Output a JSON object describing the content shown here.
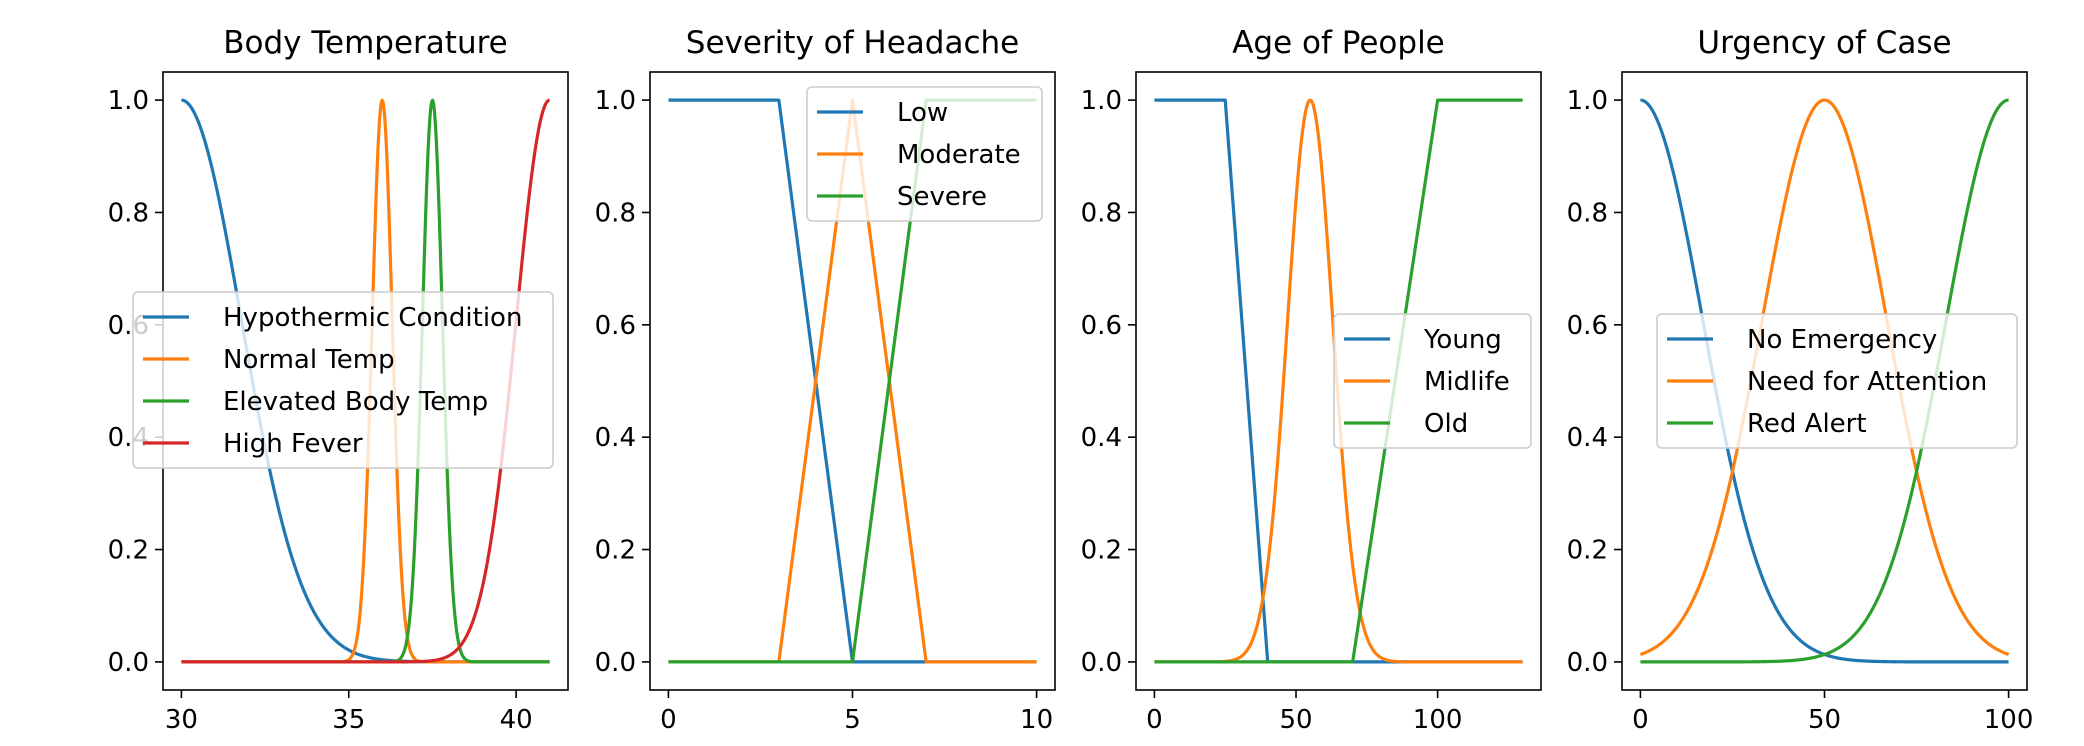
{
  "colors": {
    "c0": "#1f77b4",
    "c1": "#ff7f0e",
    "c2": "#2ca02c",
    "c3": "#d62728"
  },
  "chart_data": [
    {
      "type": "line",
      "title": "Body Temperature",
      "xlim": [
        29.45,
        41.55
      ],
      "ylim": [
        -0.05,
        1.05
      ],
      "xticks": [
        30,
        35,
        40
      ],
      "yticks": [
        "0.0",
        "0.2",
        "0.4",
        "0.6",
        "0.8",
        "1.0"
      ],
      "legend": {
        "position": "center-left"
      },
      "series": [
        {
          "name": "Hypothermic Condition",
          "color": "#1f77b4",
          "kind": "gauss",
          "mean": 30,
          "sigma": 1.8,
          "xmin": 30,
          "xmax": 41
        },
        {
          "name": "Normal Temp",
          "color": "#ff7f0e",
          "kind": "gauss",
          "mean": 36,
          "sigma": 0.3,
          "xmin": 30,
          "xmax": 41
        },
        {
          "name": "Elevated Body Temp",
          "color": "#2ca02c",
          "kind": "gauss",
          "mean": 37.5,
          "sigma": 0.3,
          "xmin": 30,
          "xmax": 41
        },
        {
          "name": "High Fever",
          "color": "#d62728",
          "kind": "gauss",
          "mean": 41,
          "sigma": 1.0,
          "xmin": 30,
          "xmax": 41
        }
      ]
    },
    {
      "type": "line",
      "title": "Severity of Headache",
      "xlim": [
        -0.5,
        10.5
      ],
      "ylim": [
        -0.05,
        1.05
      ],
      "xticks": [
        0,
        5,
        10
      ],
      "yticks": [
        "0.0",
        "0.2",
        "0.4",
        "0.6",
        "0.8",
        "1.0"
      ],
      "legend": {
        "position": "top-right"
      },
      "series": [
        {
          "name": "Low",
          "color": "#1f77b4",
          "kind": "points",
          "points": [
            [
              0,
              1
            ],
            [
              3,
              1
            ],
            [
              5,
              0
            ],
            [
              10,
              0
            ]
          ]
        },
        {
          "name": "Moderate",
          "color": "#ff7f0e",
          "kind": "points",
          "points": [
            [
              0,
              0
            ],
            [
              3,
              0
            ],
            [
              5,
              1
            ],
            [
              7,
              0
            ],
            [
              10,
              0
            ]
          ]
        },
        {
          "name": "Severe",
          "color": "#2ca02c",
          "kind": "points",
          "points": [
            [
              0,
              0
            ],
            [
              5,
              0
            ],
            [
              7,
              1
            ],
            [
              10,
              1
            ]
          ]
        }
      ]
    },
    {
      "type": "line",
      "title": "Age of People",
      "xlim": [
        -6.5,
        136.5
      ],
      "ylim": [
        -0.05,
        1.05
      ],
      "xticks": [
        0,
        50,
        100
      ],
      "yticks": [
        "0.0",
        "0.2",
        "0.4",
        "0.6",
        "0.8",
        "1.0"
      ],
      "legend": {
        "position": "center-right"
      },
      "series": [
        {
          "name": "Young",
          "color": "#1f77b4",
          "kind": "points",
          "points": [
            [
              0,
              1
            ],
            [
              25,
              1
            ],
            [
              40,
              0
            ],
            [
              130,
              0
            ]
          ]
        },
        {
          "name": "Midlife",
          "color": "#ff7f0e",
          "kind": "gauss",
          "mean": 55,
          "sigma": 8,
          "xmin": 0,
          "xmax": 130
        },
        {
          "name": "Old",
          "color": "#2ca02c",
          "kind": "points",
          "points": [
            [
              0,
              0
            ],
            [
              70,
              0
            ],
            [
              100,
              1
            ],
            [
              130,
              1
            ]
          ]
        }
      ]
    },
    {
      "type": "line",
      "title": "Urgency of Case",
      "xlim": [
        -5,
        105
      ],
      "ylim": [
        -0.05,
        1.05
      ],
      "xticks": [
        0,
        50,
        100
      ],
      "yticks": [
        "0.0",
        "0.2",
        "0.4",
        "0.6",
        "0.8",
        "1.0"
      ],
      "legend": {
        "position": "center-right"
      },
      "series": [
        {
          "name": "No Emergency",
          "color": "#1f77b4",
          "kind": "gauss",
          "mean": 0,
          "sigma": 17,
          "xmin": 0,
          "xmax": 100
        },
        {
          "name": "Need for Attention",
          "color": "#ff7f0e",
          "kind": "gauss",
          "mean": 50,
          "sigma": 17,
          "xmin": 0,
          "xmax": 100
        },
        {
          "name": "Red Alert",
          "color": "#2ca02c",
          "kind": "gauss",
          "mean": 100,
          "sigma": 17,
          "xmin": 0,
          "xmax": 100
        }
      ]
    }
  ]
}
